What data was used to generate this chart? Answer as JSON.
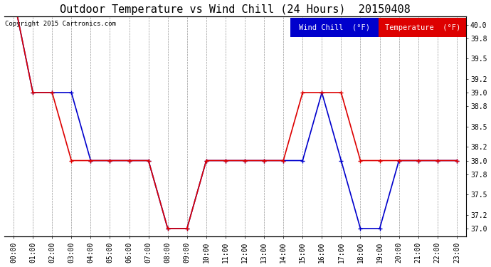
{
  "title": "Outdoor Temperature vs Wind Chill (24 Hours)  20150408",
  "copyright": "Copyright 2015 Cartronics.com",
  "legend_wind_chill": "Wind Chill  (°F)",
  "legend_temperature": "Temperature  (°F)",
  "xlabels": [
    "00:00",
    "01:00",
    "02:00",
    "03:00",
    "04:00",
    "05:00",
    "06:00",
    "07:00",
    "08:00",
    "09:00",
    "10:00",
    "11:00",
    "12:00",
    "13:00",
    "14:00",
    "15:00",
    "16:00",
    "17:00",
    "18:00",
    "19:00",
    "20:00",
    "21:00",
    "22:00",
    "23:00"
  ],
  "ylim": [
    36.88,
    40.12
  ],
  "yticks": [
    37.0,
    37.2,
    37.5,
    37.8,
    38.0,
    38.2,
    38.5,
    38.8,
    39.0,
    39.2,
    39.5,
    39.8,
    40.0
  ],
  "ytick_labels": [
    "37.0",
    "37.2",
    "37.5",
    "37.8",
    "38.0",
    "38.2",
    "38.5",
    "38.8",
    "39.0",
    "39.2",
    "39.5",
    "39.8",
    "40.0"
  ],
  "temperature_color": "#dd0000",
  "wind_chill_color": "#0000cc",
  "background_color": "#ffffff",
  "grid_color": "#999999",
  "temperature_data": [
    40.4,
    39.0,
    39.0,
    38.0,
    38.0,
    38.0,
    38.0,
    38.0,
    37.0,
    37.0,
    38.0,
    38.0,
    38.0,
    38.0,
    38.0,
    39.0,
    39.0,
    39.0,
    38.0,
    38.0,
    38.0,
    38.0,
    38.0,
    38.0
  ],
  "wind_chill_data": [
    40.4,
    39.0,
    39.0,
    39.0,
    38.0,
    38.0,
    38.0,
    38.0,
    37.0,
    37.0,
    38.0,
    38.0,
    38.0,
    38.0,
    38.0,
    38.0,
    39.0,
    38.0,
    37.0,
    37.0,
    38.0,
    38.0,
    38.0,
    38.0
  ],
  "title_fontsize": 11,
  "tick_fontsize": 7,
  "legend_fontsize": 7.5,
  "copyright_fontsize": 6.5,
  "wind_chill_legend_bg": "#0000cc",
  "temperature_legend_bg": "#dd0000",
  "legend_text_color": "#ffffff"
}
